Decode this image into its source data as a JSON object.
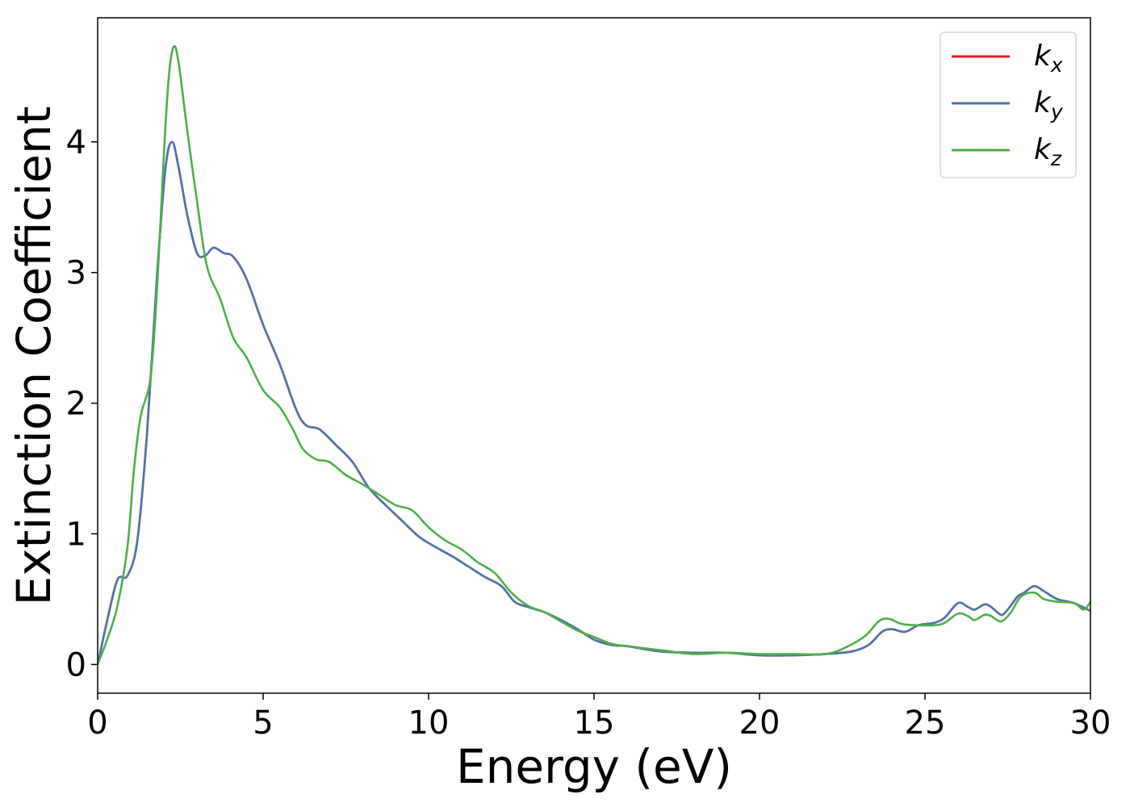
{
  "chart_data": {
    "type": "line",
    "title": "",
    "xlabel": "Energy (eV)",
    "ylabel": "Extinction Coefficient",
    "xlim": [
      0,
      30
    ],
    "ylim": [
      -0.22,
      4.95
    ],
    "xticks": [
      0,
      5,
      10,
      15,
      20,
      25,
      30
    ],
    "yticks": [
      0,
      1,
      2,
      3,
      4
    ],
    "grid": false,
    "legend_position": "top-right",
    "series": [
      {
        "name": "k_x",
        "legend_base": "k",
        "legend_sub": "x",
        "color": "#e41a1c",
        "points": [
          [
            0,
            0
          ],
          [
            0.3,
            0.35
          ],
          [
            0.6,
            0.65
          ],
          [
            0.9,
            0.68
          ],
          [
            1.2,
            0.95
          ],
          [
            1.5,
            1.8
          ],
          [
            1.8,
            3.0
          ],
          [
            2.05,
            3.8
          ],
          [
            2.25,
            4.0
          ],
          [
            2.45,
            3.8
          ],
          [
            2.7,
            3.45
          ],
          [
            3.0,
            3.15
          ],
          [
            3.25,
            3.13
          ],
          [
            3.5,
            3.19
          ],
          [
            3.8,
            3.15
          ],
          [
            4.1,
            3.12
          ],
          [
            4.5,
            2.95
          ],
          [
            5.0,
            2.6
          ],
          [
            5.5,
            2.3
          ],
          [
            6.0,
            1.95
          ],
          [
            6.3,
            1.83
          ],
          [
            6.7,
            1.8
          ],
          [
            7.2,
            1.68
          ],
          [
            7.7,
            1.55
          ],
          [
            8.2,
            1.35
          ],
          [
            8.7,
            1.22
          ],
          [
            9.2,
            1.1
          ],
          [
            9.7,
            0.98
          ],
          [
            10.2,
            0.9
          ],
          [
            10.7,
            0.83
          ],
          [
            11.2,
            0.75
          ],
          [
            11.7,
            0.67
          ],
          [
            12.2,
            0.6
          ],
          [
            12.6,
            0.48
          ],
          [
            13.0,
            0.44
          ],
          [
            13.5,
            0.4
          ],
          [
            14.0,
            0.34
          ],
          [
            14.5,
            0.27
          ],
          [
            15.0,
            0.19
          ],
          [
            15.5,
            0.15
          ],
          [
            16.0,
            0.14
          ],
          [
            17.0,
            0.1
          ],
          [
            18.0,
            0.09
          ],
          [
            19.0,
            0.09
          ],
          [
            20.0,
            0.07
          ],
          [
            21.0,
            0.07
          ],
          [
            22.0,
            0.08
          ],
          [
            22.8,
            0.1
          ],
          [
            23.3,
            0.15
          ],
          [
            23.7,
            0.25
          ],
          [
            24.0,
            0.27
          ],
          [
            24.4,
            0.25
          ],
          [
            24.8,
            0.3
          ],
          [
            25.3,
            0.32
          ],
          [
            25.6,
            0.36
          ],
          [
            26.0,
            0.47
          ],
          [
            26.3,
            0.44
          ],
          [
            26.5,
            0.42
          ],
          [
            26.8,
            0.46
          ],
          [
            27.0,
            0.44
          ],
          [
            27.3,
            0.38
          ],
          [
            27.5,
            0.42
          ],
          [
            27.8,
            0.52
          ],
          [
            28.0,
            0.55
          ],
          [
            28.3,
            0.6
          ],
          [
            28.6,
            0.56
          ],
          [
            29.0,
            0.5
          ],
          [
            29.5,
            0.47
          ],
          [
            30.0,
            0.41
          ]
        ]
      },
      {
        "name": "k_y",
        "legend_base": "k",
        "legend_sub": "y",
        "color": "#4a76a9",
        "points": [
          [
            0,
            0
          ],
          [
            0.3,
            0.35
          ],
          [
            0.6,
            0.65
          ],
          [
            0.9,
            0.68
          ],
          [
            1.2,
            0.95
          ],
          [
            1.5,
            1.8
          ],
          [
            1.8,
            3.0
          ],
          [
            2.05,
            3.8
          ],
          [
            2.25,
            4.0
          ],
          [
            2.45,
            3.8
          ],
          [
            2.7,
            3.45
          ],
          [
            3.0,
            3.15
          ],
          [
            3.25,
            3.13
          ],
          [
            3.5,
            3.19
          ],
          [
            3.8,
            3.15
          ],
          [
            4.1,
            3.12
          ],
          [
            4.5,
            2.95
          ],
          [
            5.0,
            2.6
          ],
          [
            5.5,
            2.3
          ],
          [
            6.0,
            1.95
          ],
          [
            6.3,
            1.83
          ],
          [
            6.7,
            1.8
          ],
          [
            7.2,
            1.68
          ],
          [
            7.7,
            1.55
          ],
          [
            8.2,
            1.35
          ],
          [
            8.7,
            1.22
          ],
          [
            9.2,
            1.1
          ],
          [
            9.7,
            0.98
          ],
          [
            10.2,
            0.9
          ],
          [
            10.7,
            0.83
          ],
          [
            11.2,
            0.75
          ],
          [
            11.7,
            0.67
          ],
          [
            12.2,
            0.6
          ],
          [
            12.6,
            0.48
          ],
          [
            13.0,
            0.44
          ],
          [
            13.5,
            0.4
          ],
          [
            14.0,
            0.34
          ],
          [
            14.5,
            0.27
          ],
          [
            15.0,
            0.19
          ],
          [
            15.5,
            0.15
          ],
          [
            16.0,
            0.14
          ],
          [
            17.0,
            0.1
          ],
          [
            18.0,
            0.09
          ],
          [
            19.0,
            0.09
          ],
          [
            20.0,
            0.07
          ],
          [
            21.0,
            0.07
          ],
          [
            22.0,
            0.08
          ],
          [
            22.8,
            0.1
          ],
          [
            23.3,
            0.15
          ],
          [
            23.7,
            0.25
          ],
          [
            24.0,
            0.27
          ],
          [
            24.4,
            0.25
          ],
          [
            24.8,
            0.3
          ],
          [
            25.3,
            0.32
          ],
          [
            25.6,
            0.36
          ],
          [
            26.0,
            0.47
          ],
          [
            26.3,
            0.44
          ],
          [
            26.5,
            0.42
          ],
          [
            26.8,
            0.46
          ],
          [
            27.0,
            0.44
          ],
          [
            27.3,
            0.38
          ],
          [
            27.5,
            0.42
          ],
          [
            27.8,
            0.52
          ],
          [
            28.0,
            0.55
          ],
          [
            28.3,
            0.6
          ],
          [
            28.6,
            0.56
          ],
          [
            29.0,
            0.5
          ],
          [
            29.5,
            0.47
          ],
          [
            30.0,
            0.41
          ]
        ]
      },
      {
        "name": "k_z",
        "legend_base": "k",
        "legend_sub": "z",
        "color": "#4daf4a",
        "points": [
          [
            0,
            0
          ],
          [
            0.3,
            0.2
          ],
          [
            0.6,
            0.45
          ],
          [
            0.9,
            0.9
          ],
          [
            1.1,
            1.5
          ],
          [
            1.3,
            1.9
          ],
          [
            1.6,
            2.2
          ],
          [
            1.8,
            2.9
          ],
          [
            2.0,
            3.9
          ],
          [
            2.15,
            4.5
          ],
          [
            2.3,
            4.73
          ],
          [
            2.45,
            4.6
          ],
          [
            2.7,
            4.1
          ],
          [
            3.0,
            3.55
          ],
          [
            3.3,
            3.05
          ],
          [
            3.7,
            2.8
          ],
          [
            4.1,
            2.5
          ],
          [
            4.5,
            2.35
          ],
          [
            5.0,
            2.1
          ],
          [
            5.5,
            1.97
          ],
          [
            5.9,
            1.8
          ],
          [
            6.2,
            1.65
          ],
          [
            6.6,
            1.57
          ],
          [
            7.0,
            1.55
          ],
          [
            7.5,
            1.45
          ],
          [
            8.0,
            1.38
          ],
          [
            8.5,
            1.3
          ],
          [
            9.0,
            1.22
          ],
          [
            9.5,
            1.18
          ],
          [
            10.0,
            1.05
          ],
          [
            10.5,
            0.95
          ],
          [
            11.0,
            0.88
          ],
          [
            11.5,
            0.78
          ],
          [
            12.0,
            0.7
          ],
          [
            12.5,
            0.55
          ],
          [
            13.0,
            0.45
          ],
          [
            13.5,
            0.4
          ],
          [
            14.0,
            0.33
          ],
          [
            14.5,
            0.26
          ],
          [
            15.0,
            0.21
          ],
          [
            15.5,
            0.16
          ],
          [
            16.0,
            0.14
          ],
          [
            17.0,
            0.11
          ],
          [
            18.0,
            0.08
          ],
          [
            19.0,
            0.09
          ],
          [
            20.0,
            0.08
          ],
          [
            21.0,
            0.08
          ],
          [
            22.0,
            0.08
          ],
          [
            22.6,
            0.13
          ],
          [
            23.2,
            0.22
          ],
          [
            23.6,
            0.33
          ],
          [
            23.9,
            0.35
          ],
          [
            24.3,
            0.31
          ],
          [
            24.8,
            0.3
          ],
          [
            25.3,
            0.3
          ],
          [
            25.6,
            0.32
          ],
          [
            26.0,
            0.39
          ],
          [
            26.3,
            0.37
          ],
          [
            26.5,
            0.34
          ],
          [
            26.8,
            0.38
          ],
          [
            27.0,
            0.37
          ],
          [
            27.3,
            0.33
          ],
          [
            27.6,
            0.4
          ],
          [
            27.9,
            0.52
          ],
          [
            28.3,
            0.55
          ],
          [
            28.6,
            0.5
          ],
          [
            29.0,
            0.48
          ],
          [
            29.5,
            0.47
          ],
          [
            29.8,
            0.42
          ],
          [
            30.0,
            0.48
          ]
        ]
      }
    ]
  }
}
